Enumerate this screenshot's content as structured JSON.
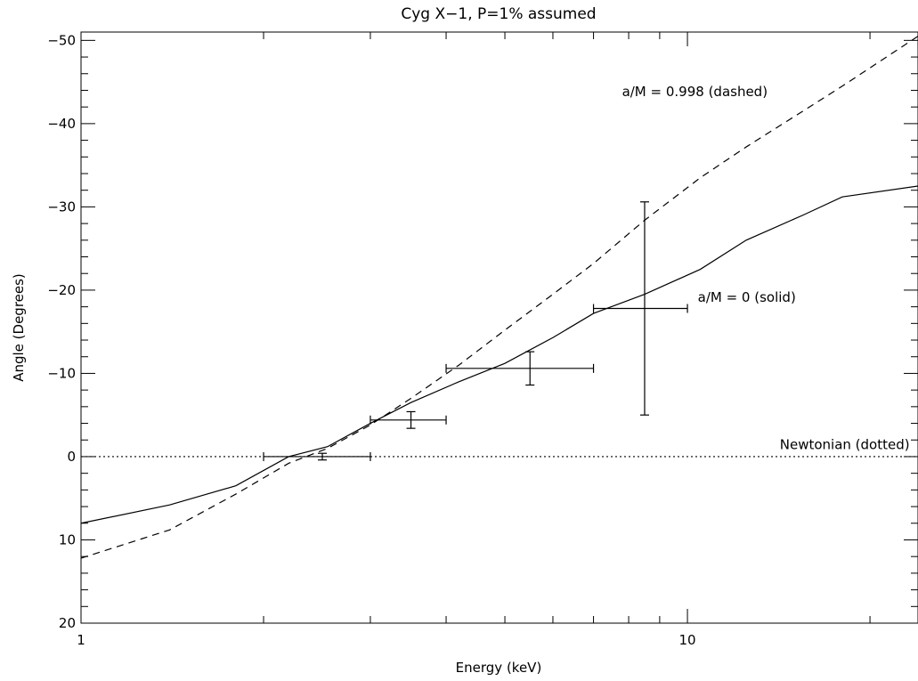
{
  "chart_data": {
    "type": "line",
    "title": "Cyg X-1, P=1% assumed",
    "xlabel": "Energy (keV)",
    "ylabel": "Angle (Degrees)",
    "xscale": "log",
    "xlim": [
      1,
      24
    ],
    "ylim": [
      20,
      -51
    ],
    "x_ticks": [
      {
        "value": 1,
        "label": "1"
      },
      {
        "value": 10,
        "label": "10"
      }
    ],
    "y_ticks": [
      {
        "value": -50,
        "label": "-50"
      },
      {
        "value": -40,
        "label": "-40"
      },
      {
        "value": -30,
        "label": "-30"
      },
      {
        "value": -20,
        "label": "-20"
      },
      {
        "value": -10,
        "label": "-10"
      },
      {
        "value": 0,
        "label": "0"
      },
      {
        "value": 10,
        "label": "10"
      },
      {
        "value": 20,
        "label": "20"
      }
    ],
    "series": [
      {
        "style": "solid",
        "x": [
          1.0,
          1.4,
          1.8,
          2.2,
          2.55,
          3.0,
          3.5,
          4.2,
          5.0,
          6.0,
          7.0,
          8.5,
          10.5,
          12.5,
          15.5,
          18.0,
          24.0
        ],
        "y": [
          8.0,
          5.8,
          3.5,
          0.0,
          -1.2,
          -4.0,
          -6.5,
          -9.0,
          -11.2,
          -14.3,
          -17.2,
          -19.5,
          -22.5,
          -26.0,
          -29.0,
          -31.2,
          -32.5
        ]
      },
      {
        "style": "dashed",
        "x": [
          1.0,
          1.4,
          1.8,
          2.2,
          2.55,
          3.0,
          3.5,
          4.2,
          5.0,
          6.0,
          7.0,
          8.5,
          10.5,
          12.5,
          15.5,
          18.0,
          24.0
        ],
        "y": [
          12.2,
          8.8,
          4.5,
          0.8,
          -1.0,
          -3.8,
          -7.0,
          -11.0,
          -15.2,
          -19.5,
          -23.2,
          -28.4,
          -33.5,
          -37.2,
          -41.5,
          -44.5,
          -50.5
        ]
      },
      {
        "style": "dotted",
        "x": [
          1.0,
          24.0
        ],
        "y": [
          0,
          0
        ]
      }
    ],
    "error_bars": [
      {
        "x": 2.5,
        "xlo": 2.0,
        "xhi": 3.0,
        "y": 0.0,
        "ylo": 0.4,
        "yhi": -0.4
      },
      {
        "x": 3.5,
        "xlo": 3.0,
        "xhi": 4.0,
        "y": -4.4,
        "ylo": -3.4,
        "yhi": -5.4
      },
      {
        "x": 5.5,
        "xlo": 4.0,
        "xhi": 7.0,
        "y": -10.6,
        "ylo": -8.6,
        "yhi": -12.6
      },
      {
        "x": 8.5,
        "xlo": 7.0,
        "xhi": 10.0,
        "y": -17.8,
        "ylo": -5.0,
        "yhi": -30.6
      }
    ],
    "annotations": [
      {
        "text": "a/M = 0.998 (dashed)",
        "x": 7.8,
        "y": -43.3
      },
      {
        "text": "a/M = 0 (solid)",
        "x": 10.4,
        "y": -18.6
      },
      {
        "text": "Newtonian (dotted)",
        "x": 14.2,
        "y": -0.9
      }
    ],
    "grid": false,
    "legend": "none"
  }
}
